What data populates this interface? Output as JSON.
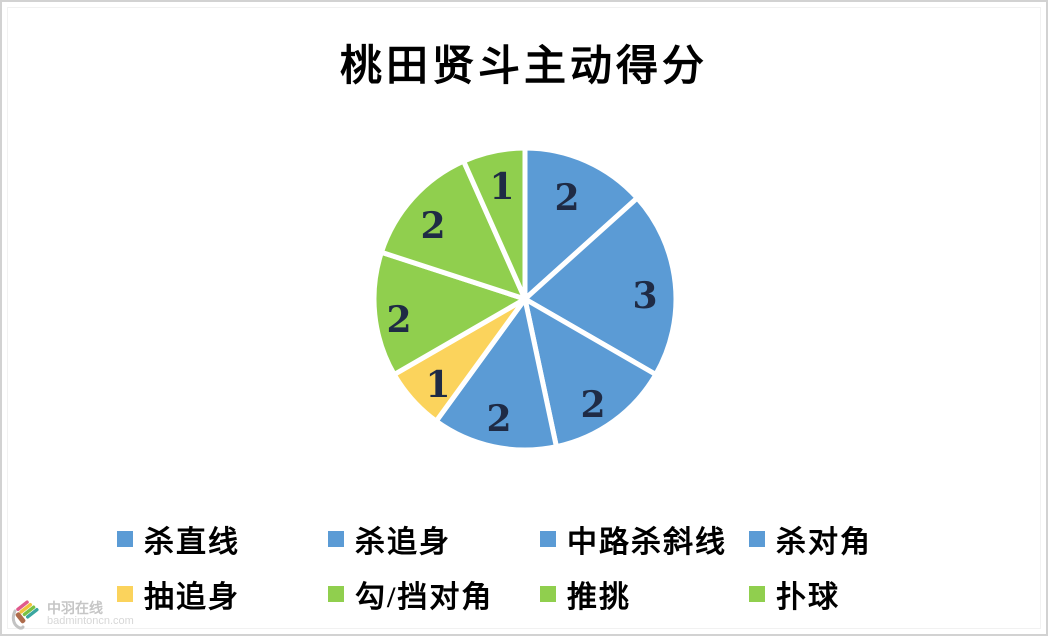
{
  "chart_data": {
    "type": "pie",
    "title": "桃田贤斗主动得分",
    "total": 15,
    "start_angle_deg": 0,
    "direction": "clockwise",
    "legend_position": "bottom",
    "slice_border_color": "#ffffff",
    "data_label_color": "#1f2b45",
    "items": [
      {
        "label": "杀直线",
        "value": 2,
        "color": "#5b9bd5"
      },
      {
        "label": "杀追身",
        "value": 3,
        "color": "#5b9bd5"
      },
      {
        "label": "中路杀斜线",
        "value": 2,
        "color": "#5b9bd5"
      },
      {
        "label": "杀对角",
        "value": 2,
        "color": "#5b9bd5"
      },
      {
        "label": "抽追身",
        "value": 1,
        "color": "#fbd35c"
      },
      {
        "label": "勾/挡对角",
        "value": 2,
        "color": "#90cf4e"
      },
      {
        "label": "推挑",
        "value": 2,
        "color": "#90cf4e"
      },
      {
        "label": "扑球",
        "value": 1,
        "color": "#90cf4e"
      }
    ]
  },
  "watermark": {
    "site_name": "中羽在线",
    "site_url": "badmintoncn.com"
  }
}
